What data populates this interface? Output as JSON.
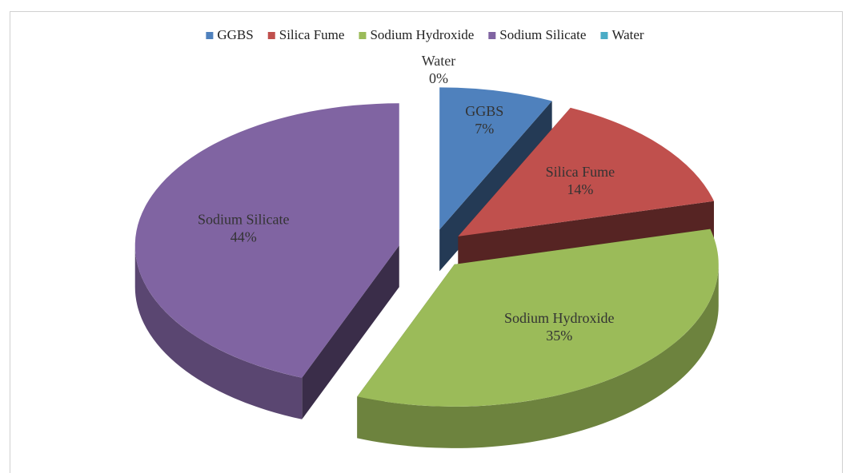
{
  "chart_data": {
    "type": "pie",
    "categories": [
      "GGBS",
      "Silica Fume",
      "Sodium Hydroxide",
      "Sodium Silicate",
      "Water"
    ],
    "values": [
      7,
      14,
      35,
      44,
      0
    ],
    "value_labels": [
      "7%",
      "14%",
      "35%",
      "44%",
      "0%"
    ],
    "colors": [
      "#4f81bd",
      "#c0504d",
      "#9bbb59",
      "#8064a2",
      "#4bacc6"
    ],
    "legend": "top",
    "exploded": true,
    "three_d": true
  }
}
